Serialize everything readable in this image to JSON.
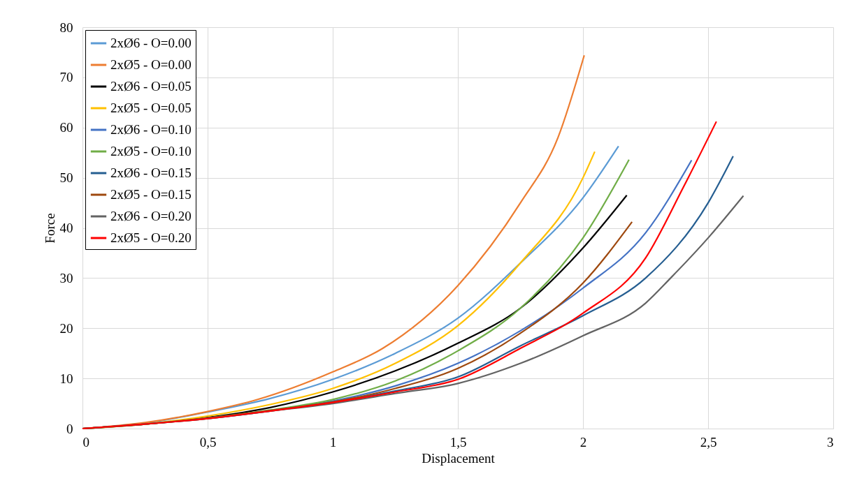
{
  "chart_data": {
    "type": "line",
    "xlabel": "Displacement",
    "ylabel": "Force",
    "xlim": [
      0,
      3
    ],
    "ylim": [
      0,
      80
    ],
    "xticks": [
      0,
      {
        "value": 0.5,
        "label": "0,5"
      },
      1,
      {
        "value": 1.5,
        "label": "1,5"
      },
      2,
      {
        "value": 2.5,
        "label": "2,5"
      },
      3
    ],
    "yticks": [
      0,
      10,
      20,
      30,
      40,
      50,
      60,
      70,
      80
    ],
    "grid": true,
    "legend": "top left",
    "marker": "none",
    "line_style": "solid",
    "series": [
      {
        "name": "2xØ6 - O=0.00",
        "color": "#5b9bd5",
        "x": [
          0,
          0.25,
          0.5,
          0.75,
          1,
          1.25,
          1.5,
          1.75,
          2,
          2.142
        ],
        "values": [
          0,
          1.1,
          3.3,
          6,
          9.8,
          15,
          22,
          33,
          46,
          56.3
        ]
      },
      {
        "name": "2xØ5 - O=0.00",
        "color": "#ed7d31",
        "x": [
          0,
          0.25,
          0.5,
          0.7,
          1,
          1.2,
          1.5,
          1.75,
          1.9,
          2.005
        ],
        "values": [
          0,
          1.2,
          3.4,
          5.8,
          11.3,
          16,
          28.5,
          45,
          58,
          74.4
        ]
      },
      {
        "name": "2xØ6 - O=0.05",
        "color": "#000000",
        "x": [
          0,
          0.25,
          0.5,
          0.75,
          1,
          1.25,
          1.5,
          1.75,
          2,
          2.175
        ],
        "values": [
          0,
          0.9,
          2.2,
          4.2,
          7.3,
          11.5,
          17,
          24,
          36,
          46.5
        ]
      },
      {
        "name": "2xØ5 - O=0.05",
        "color": "#ffc000",
        "x": [
          0,
          0.25,
          0.5,
          0.75,
          1,
          1.25,
          1.5,
          1.75,
          2,
          2.047
        ],
        "values": [
          0,
          0.9,
          2.5,
          4.8,
          8,
          13,
          20.5,
          33,
          50,
          55.2
        ]
      },
      {
        "name": "2xØ6 - O=0.10",
        "color": "#4472c4",
        "x": [
          0.75,
          1,
          1.25,
          1.5,
          1.75,
          2,
          2.25,
          2.434
        ],
        "values": [
          3.6,
          5.5,
          8.5,
          13,
          19.5,
          28,
          39,
          53.5
        ]
      },
      {
        "name": "2xØ5 - O=0.10",
        "color": "#70ad47",
        "x": [
          0,
          0.25,
          0.5,
          0.75,
          1,
          1.25,
          1.5,
          1.75,
          2,
          2.184
        ],
        "values": [
          0,
          0.9,
          2.1,
          3.7,
          5.8,
          9.5,
          15.5,
          24,
          38,
          53.6
        ]
      },
      {
        "name": "2xØ6 - O=0.15",
        "color": "#255e91",
        "x": [
          0,
          0.25,
          0.5,
          0.75,
          1,
          1.25,
          1.5,
          1.75,
          2,
          2.25,
          2.5,
          2.6
        ],
        "values": [
          0,
          0.9,
          2,
          3.5,
          5.3,
          7.5,
          10.3,
          16.5,
          22.5,
          30,
          45,
          54.3
        ]
      },
      {
        "name": "2xØ5 - O=0.15",
        "color": "#9e480e",
        "x": [
          0,
          0.25,
          0.5,
          0.75,
          1,
          1.25,
          1.5,
          1.75,
          2,
          2.196
        ],
        "values": [
          0,
          0.9,
          2.1,
          3.6,
          5.3,
          8,
          12,
          19,
          29,
          41.2
        ]
      },
      {
        "name": "2xØ6 - O=0.20",
        "color": "#636363",
        "x": [
          0,
          0.25,
          0.5,
          0.75,
          1,
          1.25,
          1.5,
          1.75,
          2,
          2.25,
          2.35,
          2.5,
          2.641
        ],
        "values": [
          0,
          0.9,
          2,
          3.5,
          5,
          7,
          9,
          13,
          18.5,
          25,
          30,
          38,
          46.4
        ]
      },
      {
        "name": "2xØ5 - O=0.20",
        "color": "#ff0000",
        "x": [
          0,
          0.25,
          0.5,
          0.75,
          1,
          1.25,
          1.5,
          1.75,
          2,
          2.25,
          2.4,
          2.533
        ],
        "values": [
          0,
          0.9,
          2,
          3.5,
          5.2,
          7.3,
          9.8,
          16,
          23,
          34,
          48,
          61.2
        ]
      }
    ]
  }
}
